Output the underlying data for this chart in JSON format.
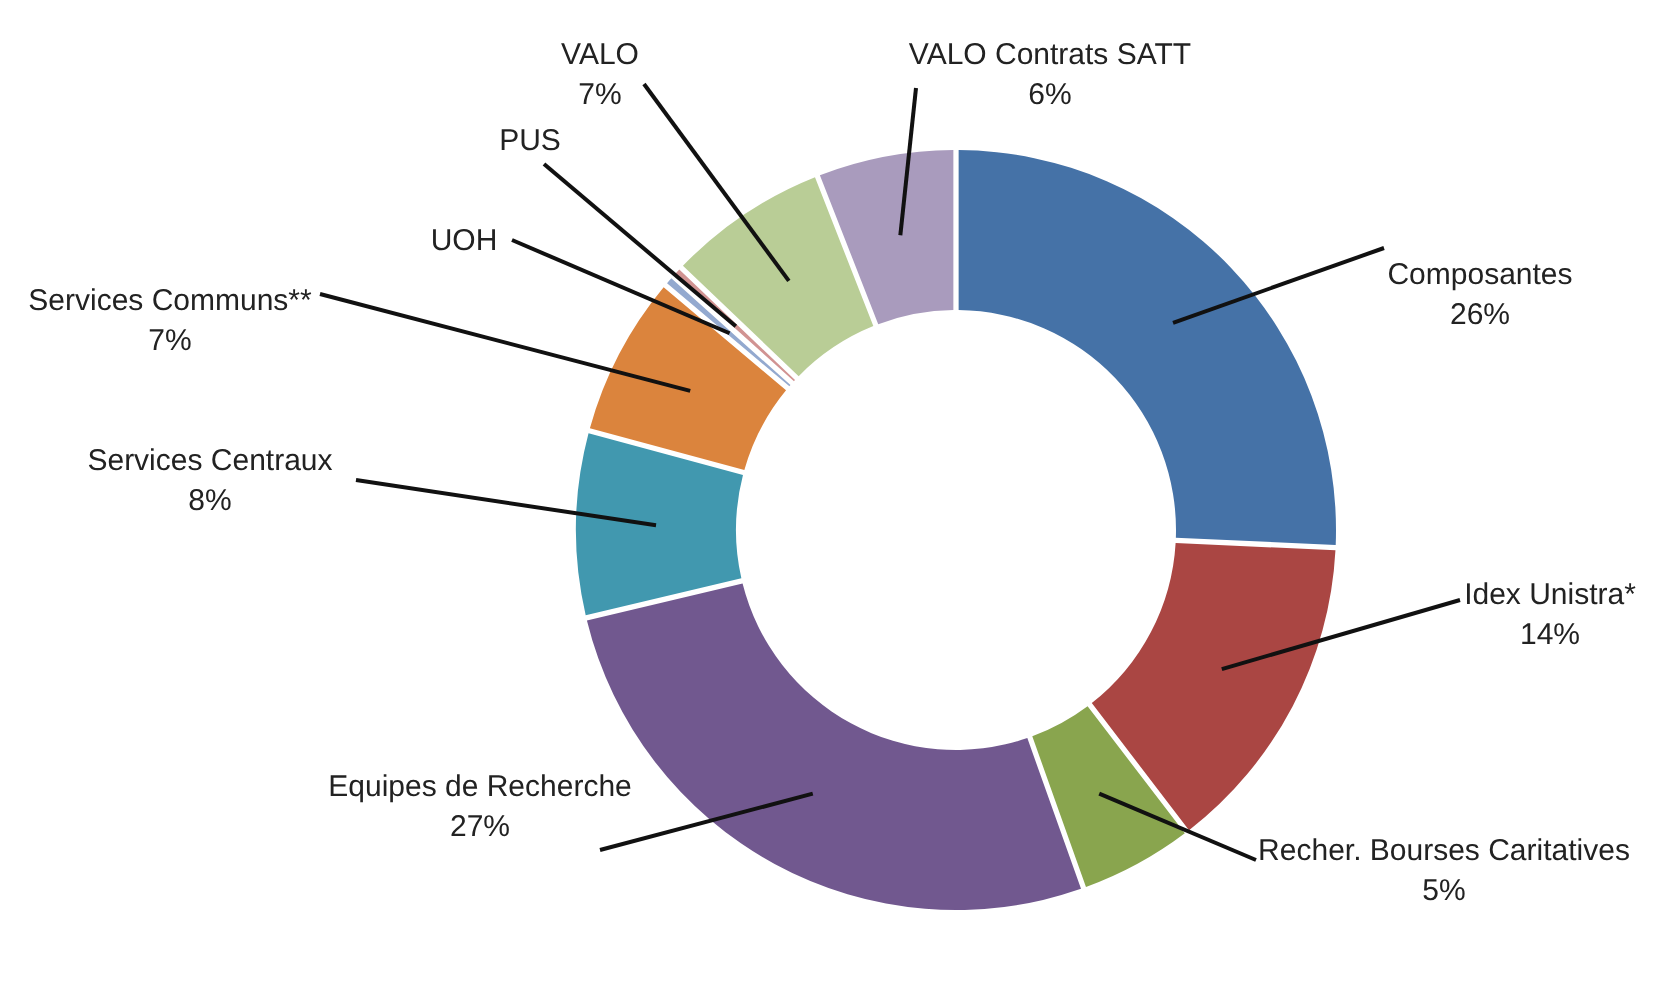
{
  "chart_data": {
    "type": "donut",
    "categories": [
      "Composantes",
      "Idex Unistra*",
      "Recher. Bourses Caritatives",
      "Equipes de Recherche",
      "Services Centraux",
      "Services Communs**",
      "UOH",
      "PUS",
      "VALO",
      "VALO Contrats SATT"
    ],
    "values": [
      26,
      14,
      5,
      27,
      8,
      7,
      0.5,
      0.5,
      7,
      6
    ],
    "value_labels": [
      "26%",
      "14%",
      "5%",
      "27%",
      "8%",
      "7%",
      null,
      null,
      "7%",
      "6%"
    ],
    "colors": [
      "#4572a7",
      "#aa4643",
      "#89a54e",
      "#71588f",
      "#4198af",
      "#db843d",
      "#93a9cf",
      "#d19392",
      "#b9cd96",
      "#a99bbd"
    ]
  }
}
